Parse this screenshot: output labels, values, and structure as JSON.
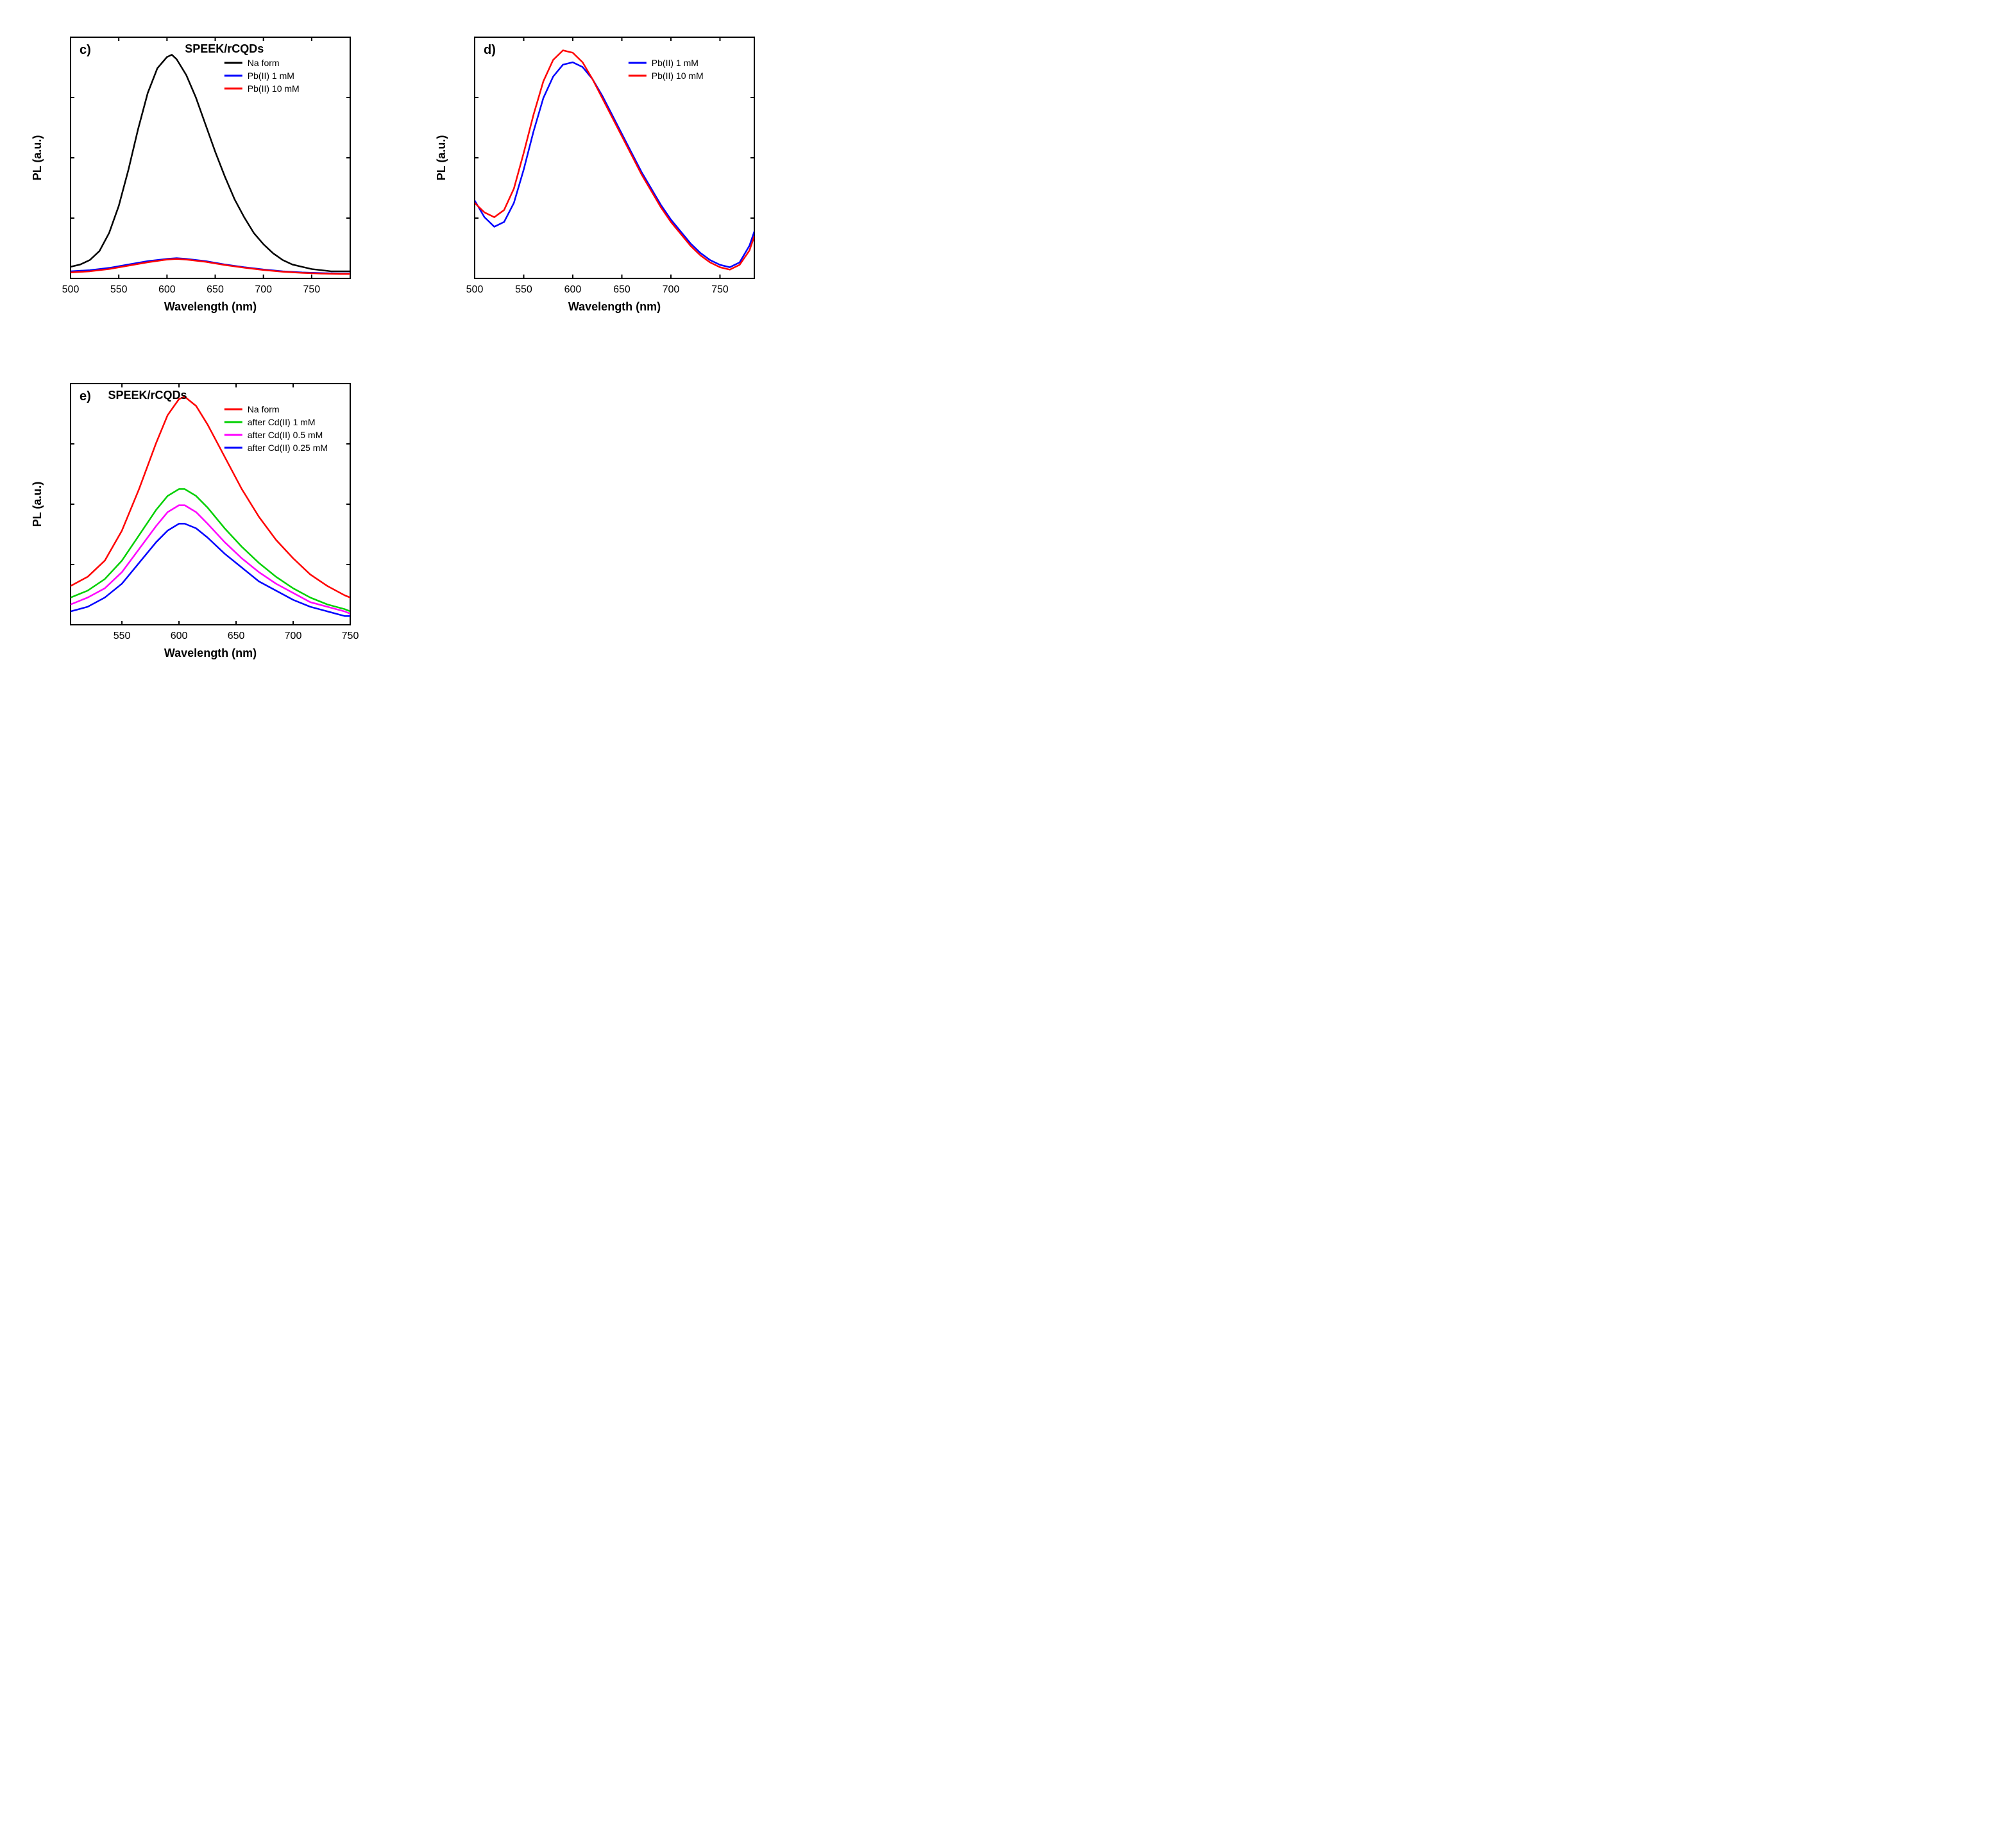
{
  "figure": {
    "background": "#ffffff",
    "axis_color": "#000000",
    "axis_width": 2,
    "tick_len": 6,
    "series_width": 2.5
  },
  "panels": {
    "c": {
      "letter": "c)",
      "title": "SPEEK/rCQDs",
      "xlabel": "Wavelength (nm)",
      "ylabel": "PL (a.u.)",
      "xlim": [
        500,
        790
      ],
      "xticks": [
        500,
        550,
        600,
        650,
        700,
        750
      ],
      "y_pad_top": 0.08,
      "y_pad_bot": 0.02,
      "legend": [
        {
          "label": "Na form",
          "color": "#000000"
        },
        {
          "label": "Pb(II) 1 mM",
          "color": "#0000ff"
        },
        {
          "label": "Pb(II) 10 mM",
          "color": "#ff0000"
        }
      ],
      "series": [
        {
          "color": "#000000",
          "pts": [
            [
              500,
              0.05
            ],
            [
              510,
              0.06
            ],
            [
              520,
              0.08
            ],
            [
              530,
              0.12
            ],
            [
              540,
              0.2
            ],
            [
              550,
              0.32
            ],
            [
              560,
              0.48
            ],
            [
              570,
              0.66
            ],
            [
              580,
              0.82
            ],
            [
              590,
              0.93
            ],
            [
              600,
              0.98
            ],
            [
              605,
              0.99
            ],
            [
              610,
              0.97
            ],
            [
              620,
              0.9
            ],
            [
              630,
              0.8
            ],
            [
              640,
              0.68
            ],
            [
              650,
              0.56
            ],
            [
              660,
              0.45
            ],
            [
              670,
              0.35
            ],
            [
              680,
              0.27
            ],
            [
              690,
              0.2
            ],
            [
              700,
              0.15
            ],
            [
              710,
              0.11
            ],
            [
              720,
              0.08
            ],
            [
              730,
              0.06
            ],
            [
              740,
              0.05
            ],
            [
              750,
              0.04
            ],
            [
              760,
              0.035
            ],
            [
              770,
              0.03
            ],
            [
              780,
              0.03
            ],
            [
              790,
              0.03
            ]
          ]
        },
        {
          "color": "#0000ff",
          "pts": [
            [
              500,
              0.03
            ],
            [
              520,
              0.035
            ],
            [
              540,
              0.045
            ],
            [
              560,
              0.06
            ],
            [
              580,
              0.075
            ],
            [
              600,
              0.085
            ],
            [
              610,
              0.088
            ],
            [
              620,
              0.085
            ],
            [
              640,
              0.075
            ],
            [
              660,
              0.06
            ],
            [
              680,
              0.048
            ],
            [
              700,
              0.038
            ],
            [
              720,
              0.03
            ],
            [
              740,
              0.025
            ],
            [
              760,
              0.022
            ],
            [
              780,
              0.02
            ],
            [
              790,
              0.02
            ]
          ]
        },
        {
          "color": "#ff0000",
          "pts": [
            [
              500,
              0.025
            ],
            [
              520,
              0.03
            ],
            [
              540,
              0.04
            ],
            [
              560,
              0.055
            ],
            [
              580,
              0.07
            ],
            [
              600,
              0.082
            ],
            [
              610,
              0.085
            ],
            [
              620,
              0.082
            ],
            [
              640,
              0.072
            ],
            [
              660,
              0.058
            ],
            [
              680,
              0.046
            ],
            [
              700,
              0.036
            ],
            [
              720,
              0.028
            ],
            [
              740,
              0.023
            ],
            [
              760,
              0.02
            ],
            [
              780,
              0.018
            ],
            [
              790,
              0.018
            ]
          ]
        }
      ]
    },
    "d": {
      "letter": "d)",
      "title": "",
      "xlabel": "Wavelength (nm)",
      "ylabel": "PL (a.u.)",
      "xlim": [
        500,
        785
      ],
      "xticks": [
        500,
        550,
        600,
        650,
        700,
        750
      ],
      "y_pad_top": 0.06,
      "y_pad_bot": 0.04,
      "legend": [
        {
          "label": "Pb(II) 1 mM",
          "color": "#0000ff"
        },
        {
          "label": "Pb(II) 10 mM",
          "color": "#ff0000"
        }
      ],
      "series": [
        {
          "color": "#0000ff",
          "pts": [
            [
              500,
              0.37
            ],
            [
              510,
              0.3
            ],
            [
              520,
              0.26
            ],
            [
              530,
              0.28
            ],
            [
              540,
              0.36
            ],
            [
              550,
              0.5
            ],
            [
              560,
              0.66
            ],
            [
              570,
              0.8
            ],
            [
              580,
              0.89
            ],
            [
              590,
              0.94
            ],
            [
              600,
              0.95
            ],
            [
              610,
              0.93
            ],
            [
              620,
              0.88
            ],
            [
              630,
              0.81
            ],
            [
              640,
              0.73
            ],
            [
              650,
              0.65
            ],
            [
              660,
              0.57
            ],
            [
              670,
              0.49
            ],
            [
              680,
              0.42
            ],
            [
              690,
              0.35
            ],
            [
              700,
              0.29
            ],
            [
              710,
              0.24
            ],
            [
              720,
              0.19
            ],
            [
              730,
              0.15
            ],
            [
              740,
              0.12
            ],
            [
              750,
              0.1
            ],
            [
              760,
              0.09
            ],
            [
              770,
              0.11
            ],
            [
              780,
              0.18
            ],
            [
              785,
              0.24
            ]
          ]
        },
        {
          "color": "#ff0000",
          "pts": [
            [
              500,
              0.36
            ],
            [
              510,
              0.32
            ],
            [
              520,
              0.3
            ],
            [
              530,
              0.33
            ],
            [
              540,
              0.42
            ],
            [
              550,
              0.57
            ],
            [
              560,
              0.73
            ],
            [
              570,
              0.87
            ],
            [
              580,
              0.96
            ],
            [
              590,
              1.0
            ],
            [
              600,
              0.99
            ],
            [
              610,
              0.95
            ],
            [
              620,
              0.88
            ],
            [
              630,
              0.8
            ],
            [
              640,
              0.72
            ],
            [
              650,
              0.64
            ],
            [
              660,
              0.56
            ],
            [
              670,
              0.48
            ],
            [
              680,
              0.41
            ],
            [
              690,
              0.34
            ],
            [
              700,
              0.28
            ],
            [
              710,
              0.23
            ],
            [
              720,
              0.18
            ],
            [
              730,
              0.14
            ],
            [
              740,
              0.11
            ],
            [
              750,
              0.09
            ],
            [
              760,
              0.08
            ],
            [
              770,
              0.1
            ],
            [
              780,
              0.16
            ],
            [
              785,
              0.22
            ]
          ]
        }
      ]
    },
    "e": {
      "letter": "e)",
      "title": "SPEEK/rCQDs",
      "xlabel": "Wavelength (nm)",
      "ylabel": "PL (a.u.)",
      "xlim": [
        505,
        750
      ],
      "xticks": [
        550,
        600,
        650,
        700,
        750
      ],
      "y_pad_top": 0.06,
      "y_pad_bot": 0.04,
      "legend": [
        {
          "label": "Na form",
          "color": "#ff0000"
        },
        {
          "label": "after Cd(II) 1 mM",
          "color": "#00d000"
        },
        {
          "label": "after Cd(II) 0.5 mM",
          "color": "#ff00ff"
        },
        {
          "label": "after Cd(II) 0.25 mM",
          "color": "#0000ff"
        }
      ],
      "series": [
        {
          "color": "#ff0000",
          "pts": [
            [
              505,
              0.18
            ],
            [
              520,
              0.22
            ],
            [
              535,
              0.29
            ],
            [
              550,
              0.42
            ],
            [
              565,
              0.6
            ],
            [
              580,
              0.8
            ],
            [
              590,
              0.92
            ],
            [
              600,
              0.99
            ],
            [
              605,
              1.0
            ],
            [
              615,
              0.96
            ],
            [
              625,
              0.88
            ],
            [
              640,
              0.74
            ],
            [
              655,
              0.6
            ],
            [
              670,
              0.48
            ],
            [
              685,
              0.38
            ],
            [
              700,
              0.3
            ],
            [
              715,
              0.23
            ],
            [
              730,
              0.18
            ],
            [
              745,
              0.14
            ],
            [
              750,
              0.13
            ]
          ]
        },
        {
          "color": "#00d000",
          "pts": [
            [
              505,
              0.13
            ],
            [
              520,
              0.16
            ],
            [
              535,
              0.21
            ],
            [
              550,
              0.29
            ],
            [
              565,
              0.4
            ],
            [
              580,
              0.51
            ],
            [
              590,
              0.57
            ],
            [
              600,
              0.6
            ],
            [
              605,
              0.6
            ],
            [
              615,
              0.57
            ],
            [
              625,
              0.52
            ],
            [
              640,
              0.43
            ],
            [
              655,
              0.35
            ],
            [
              670,
              0.28
            ],
            [
              685,
              0.22
            ],
            [
              700,
              0.17
            ],
            [
              715,
              0.13
            ],
            [
              730,
              0.1
            ],
            [
              745,
              0.08
            ],
            [
              750,
              0.07
            ]
          ]
        },
        {
          "color": "#ff00ff",
          "pts": [
            [
              505,
              0.1
            ],
            [
              520,
              0.13
            ],
            [
              535,
              0.17
            ],
            [
              550,
              0.24
            ],
            [
              565,
              0.34
            ],
            [
              580,
              0.44
            ],
            [
              590,
              0.5
            ],
            [
              600,
              0.53
            ],
            [
              605,
              0.53
            ],
            [
              615,
              0.5
            ],
            [
              625,
              0.45
            ],
            [
              640,
              0.37
            ],
            [
              655,
              0.3
            ],
            [
              670,
              0.24
            ],
            [
              685,
              0.19
            ],
            [
              700,
              0.15
            ],
            [
              715,
              0.11
            ],
            [
              730,
              0.09
            ],
            [
              745,
              0.07
            ],
            [
              750,
              0.06
            ]
          ]
        },
        {
          "color": "#0000ff",
          "pts": [
            [
              505,
              0.07
            ],
            [
              520,
              0.09
            ],
            [
              535,
              0.13
            ],
            [
              550,
              0.19
            ],
            [
              565,
              0.28
            ],
            [
              580,
              0.37
            ],
            [
              590,
              0.42
            ],
            [
              600,
              0.45
            ],
            [
              605,
              0.45
            ],
            [
              615,
              0.43
            ],
            [
              625,
              0.39
            ],
            [
              640,
              0.32
            ],
            [
              655,
              0.26
            ],
            [
              670,
              0.2
            ],
            [
              685,
              0.16
            ],
            [
              700,
              0.12
            ],
            [
              715,
              0.09
            ],
            [
              730,
              0.07
            ],
            [
              745,
              0.05
            ],
            [
              750,
              0.05
            ]
          ]
        }
      ]
    }
  }
}
